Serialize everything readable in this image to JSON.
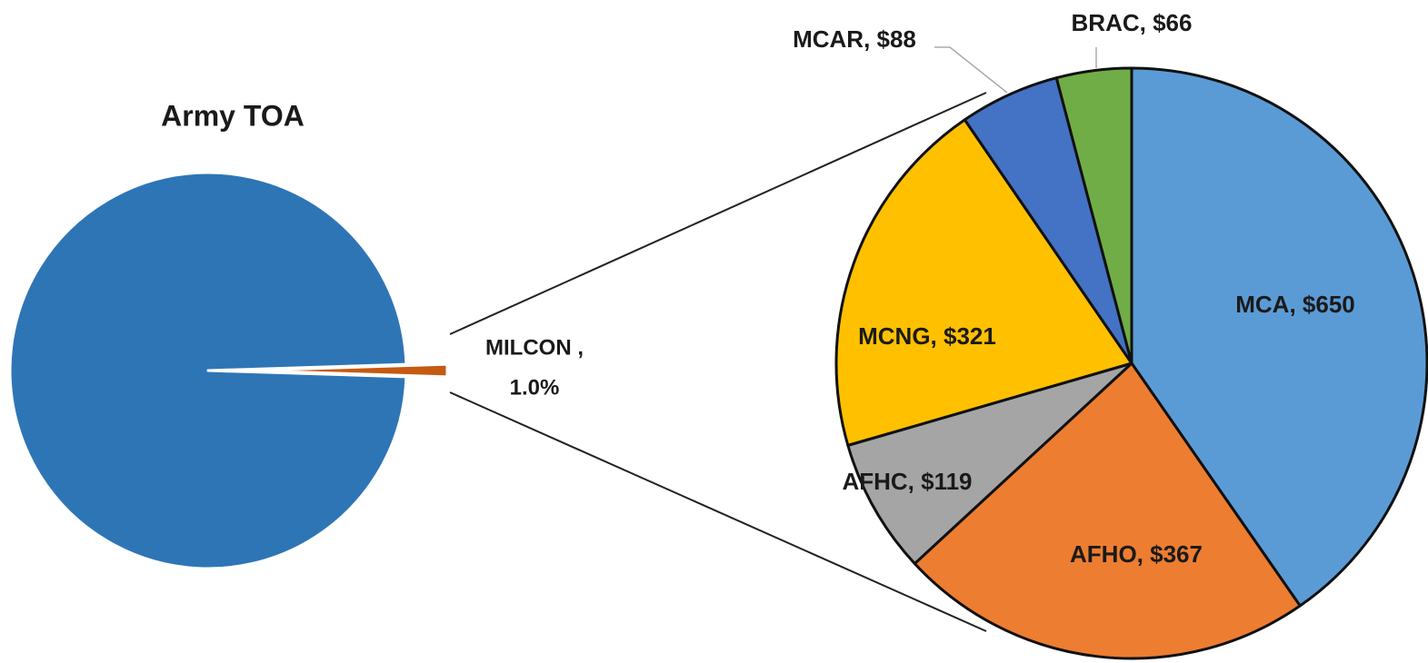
{
  "chart_data": [
    {
      "type": "pie",
      "title": "Army TOA",
      "categories": [
        null,
        "MILCON ,"
      ],
      "values": [
        99.0,
        1.0
      ],
      "value_labels": [
        null,
        "1.0%"
      ],
      "colors": [
        "#2e75b6",
        "#c55a11"
      ]
    },
    {
      "type": "pie",
      "categories": [
        "MCA",
        "AFHO",
        "AFHC",
        "MCNG",
        "MCAR",
        "BRAC"
      ],
      "values": [
        650,
        367,
        119,
        321,
        88,
        66
      ],
      "value_labels": [
        "MCA, $650",
        "AFHO, $367",
        "AFHC, $119",
        "MCNG, $321",
        "MCAR, $88",
        "BRAC, $66"
      ],
      "colors": [
        "#5b9bd5",
        "#ed7d31",
        "#a5a5a5",
        "#ffc000",
        "#4472c4",
        "#70ad47"
      ]
    }
  ]
}
